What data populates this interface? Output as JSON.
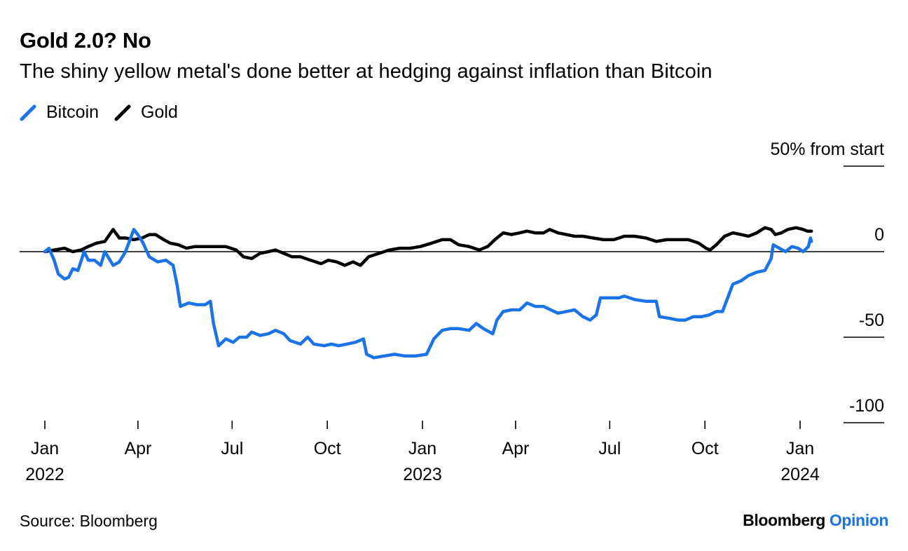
{
  "header": {
    "title": "Gold 2.0? No",
    "subtitle": "The shiny yellow metal's done better at hedging against inflation than Bitcoin"
  },
  "legend": [
    {
      "name": "Bitcoin",
      "color": "#1a73e8"
    },
    {
      "name": "Gold",
      "color": "#000000"
    }
  ],
  "footer": {
    "source": "Source: Bloomberg",
    "brand_main": "Bloomberg",
    "brand_accent": "Opinion"
  },
  "chart_data": {
    "type": "line",
    "ylabel": "50% from start",
    "ylim": [
      -100,
      50
    ],
    "y_ticks": [
      {
        "value": 50,
        "label": "50% from start"
      },
      {
        "value": 0,
        "label": "0"
      },
      {
        "value": -50,
        "label": "-50"
      },
      {
        "value": -100,
        "label": "-100"
      }
    ],
    "x_ticks": [
      {
        "date": "2022-01-01",
        "label": "Jan",
        "year": "2022"
      },
      {
        "date": "2022-04-01",
        "label": "Apr",
        "year": ""
      },
      {
        "date": "2022-07-01",
        "label": "Jul",
        "year": ""
      },
      {
        "date": "2022-10-01",
        "label": "Oct",
        "year": ""
      },
      {
        "date": "2023-01-01",
        "label": "Jan",
        "year": "2023"
      },
      {
        "date": "2023-04-01",
        "label": "Apr",
        "year": ""
      },
      {
        "date": "2023-07-01",
        "label": "Jul",
        "year": ""
      },
      {
        "date": "2023-10-01",
        "label": "Oct",
        "year": ""
      },
      {
        "date": "2024-01-01",
        "label": "Jan",
        "year": "2024"
      }
    ],
    "grid": "zero line only",
    "legend_position": "top-left",
    "series": [
      {
        "name": "Bitcoin",
        "color": "#1a73e8",
        "points": [
          [
            "2022-01-01",
            0
          ],
          [
            "2022-01-05",
            2
          ],
          [
            "2022-01-10",
            -5
          ],
          [
            "2022-01-14",
            -13
          ],
          [
            "2022-01-20",
            -16
          ],
          [
            "2022-01-24",
            -15
          ],
          [
            "2022-01-28",
            -10
          ],
          [
            "2022-02-02",
            -11
          ],
          [
            "2022-02-08",
            0
          ],
          [
            "2022-02-12",
            -5
          ],
          [
            "2022-02-18",
            -5
          ],
          [
            "2022-02-24",
            -8
          ],
          [
            "2022-02-28",
            0
          ],
          [
            "2022-03-03",
            -3
          ],
          [
            "2022-03-08",
            -8
          ],
          [
            "2022-03-14",
            -6
          ],
          [
            "2022-03-20",
            0
          ],
          [
            "2022-03-28",
            13
          ],
          [
            "2022-04-02",
            9
          ],
          [
            "2022-04-06",
            5
          ],
          [
            "2022-04-12",
            -3
          ],
          [
            "2022-04-20",
            -6
          ],
          [
            "2022-04-28",
            -5
          ],
          [
            "2022-05-05",
            -8
          ],
          [
            "2022-05-09",
            -20
          ],
          [
            "2022-05-12",
            -32
          ],
          [
            "2022-05-20",
            -30
          ],
          [
            "2022-05-28",
            -31
          ],
          [
            "2022-06-05",
            -31
          ],
          [
            "2022-06-10",
            -29
          ],
          [
            "2022-06-13",
            -42
          ],
          [
            "2022-06-18",
            -55
          ],
          [
            "2022-06-25",
            -51
          ],
          [
            "2022-07-02",
            -53
          ],
          [
            "2022-07-08",
            -50
          ],
          [
            "2022-07-15",
            -50
          ],
          [
            "2022-07-20",
            -47
          ],
          [
            "2022-07-28",
            -49
          ],
          [
            "2022-08-05",
            -48
          ],
          [
            "2022-08-12",
            -46
          ],
          [
            "2022-08-20",
            -48
          ],
          [
            "2022-08-26",
            -52
          ],
          [
            "2022-09-05",
            -54
          ],
          [
            "2022-09-12",
            -50
          ],
          [
            "2022-09-18",
            -54
          ],
          [
            "2022-09-28",
            -55
          ],
          [
            "2022-10-05",
            -54
          ],
          [
            "2022-10-12",
            -55
          ],
          [
            "2022-10-20",
            -54
          ],
          [
            "2022-10-28",
            -53
          ],
          [
            "2022-11-05",
            -51
          ],
          [
            "2022-11-08",
            -60
          ],
          [
            "2022-11-15",
            -62
          ],
          [
            "2022-11-25",
            -61
          ],
          [
            "2022-12-05",
            -60
          ],
          [
            "2022-12-15",
            -61
          ],
          [
            "2022-12-25",
            -61
          ],
          [
            "2023-01-05",
            -60
          ],
          [
            "2023-01-12",
            -51
          ],
          [
            "2023-01-20",
            -46
          ],
          [
            "2023-01-28",
            -45
          ],
          [
            "2023-02-05",
            -45
          ],
          [
            "2023-02-15",
            -46
          ],
          [
            "2023-02-22",
            -42
          ],
          [
            "2023-03-01",
            -45
          ],
          [
            "2023-03-10",
            -48
          ],
          [
            "2023-03-14",
            -40
          ],
          [
            "2023-03-20",
            -35
          ],
          [
            "2023-03-28",
            -34
          ],
          [
            "2023-04-05",
            -34
          ],
          [
            "2023-04-12",
            -30
          ],
          [
            "2023-04-20",
            -32
          ],
          [
            "2023-04-28",
            -32
          ],
          [
            "2023-05-05",
            -34
          ],
          [
            "2023-05-12",
            -36
          ],
          [
            "2023-05-20",
            -35
          ],
          [
            "2023-05-28",
            -34
          ],
          [
            "2023-06-05",
            -38
          ],
          [
            "2023-06-12",
            -40
          ],
          [
            "2023-06-18",
            -37
          ],
          [
            "2023-06-22",
            -27
          ],
          [
            "2023-06-30",
            -27
          ],
          [
            "2023-07-10",
            -27
          ],
          [
            "2023-07-15",
            -26
          ],
          [
            "2023-07-25",
            -28
          ],
          [
            "2023-08-05",
            -29
          ],
          [
            "2023-08-15",
            -29
          ],
          [
            "2023-08-18",
            -38
          ],
          [
            "2023-08-28",
            -39
          ],
          [
            "2023-09-05",
            -40
          ],
          [
            "2023-09-12",
            -40
          ],
          [
            "2023-09-20",
            -38
          ],
          [
            "2023-09-28",
            -38
          ],
          [
            "2023-10-05",
            -37
          ],
          [
            "2023-10-12",
            -35
          ],
          [
            "2023-10-18",
            -35
          ],
          [
            "2023-10-23",
            -27
          ],
          [
            "2023-10-28",
            -19
          ],
          [
            "2023-11-05",
            -17
          ],
          [
            "2023-11-12",
            -14
          ],
          [
            "2023-11-20",
            -12
          ],
          [
            "2023-11-28",
            -11
          ],
          [
            "2023-12-04",
            -4
          ],
          [
            "2023-12-06",
            4
          ],
          [
            "2023-12-12",
            2
          ],
          [
            "2023-12-18",
            0
          ],
          [
            "2023-12-24",
            3
          ],
          [
            "2023-12-30",
            2
          ],
          [
            "2024-01-04",
            0
          ],
          [
            "2024-01-09",
            3
          ],
          [
            "2024-01-11",
            8
          ],
          [
            "2024-01-12",
            6
          ]
        ]
      },
      {
        "name": "Gold",
        "color": "#000000",
        "points": [
          [
            "2022-01-01",
            0
          ],
          [
            "2022-01-10",
            1
          ],
          [
            "2022-01-20",
            2
          ],
          [
            "2022-01-28",
            0
          ],
          [
            "2022-02-05",
            1
          ],
          [
            "2022-02-12",
            3
          ],
          [
            "2022-02-20",
            5
          ],
          [
            "2022-02-28",
            6
          ],
          [
            "2022-03-08",
            13
          ],
          [
            "2022-03-14",
            8
          ],
          [
            "2022-03-20",
            8
          ],
          [
            "2022-03-28",
            7
          ],
          [
            "2022-04-05",
            8
          ],
          [
            "2022-04-12",
            10
          ],
          [
            "2022-04-18",
            10
          ],
          [
            "2022-04-26",
            7
          ],
          [
            "2022-05-02",
            5
          ],
          [
            "2022-05-10",
            4
          ],
          [
            "2022-05-18",
            2
          ],
          [
            "2022-05-26",
            3
          ],
          [
            "2022-06-05",
            3
          ],
          [
            "2022-06-15",
            3
          ],
          [
            "2022-06-25",
            3
          ],
          [
            "2022-07-05",
            1
          ],
          [
            "2022-07-12",
            -3
          ],
          [
            "2022-07-20",
            -4
          ],
          [
            "2022-07-28",
            -1
          ],
          [
            "2022-08-05",
            0
          ],
          [
            "2022-08-12",
            1
          ],
          [
            "2022-08-20",
            -1
          ],
          [
            "2022-08-28",
            -3
          ],
          [
            "2022-09-05",
            -3
          ],
          [
            "2022-09-15",
            -5
          ],
          [
            "2022-09-25",
            -7
          ],
          [
            "2022-10-02",
            -5
          ],
          [
            "2022-10-10",
            -6
          ],
          [
            "2022-10-18",
            -8
          ],
          [
            "2022-10-26",
            -6
          ],
          [
            "2022-11-02",
            -8
          ],
          [
            "2022-11-10",
            -3
          ],
          [
            "2022-11-20",
            -1
          ],
          [
            "2022-11-30",
            1
          ],
          [
            "2022-12-10",
            2
          ],
          [
            "2022-12-20",
            2
          ],
          [
            "2022-12-30",
            3
          ],
          [
            "2023-01-10",
            5
          ],
          [
            "2023-01-20",
            7
          ],
          [
            "2023-01-28",
            7
          ],
          [
            "2023-02-05",
            4
          ],
          [
            "2023-02-15",
            3
          ],
          [
            "2023-02-25",
            1
          ],
          [
            "2023-03-05",
            3
          ],
          [
            "2023-03-12",
            7
          ],
          [
            "2023-03-20",
            11
          ],
          [
            "2023-03-28",
            10
          ],
          [
            "2023-04-05",
            11
          ],
          [
            "2023-04-12",
            12
          ],
          [
            "2023-04-20",
            11
          ],
          [
            "2023-04-28",
            11
          ],
          [
            "2023-05-04",
            13
          ],
          [
            "2023-05-12",
            11
          ],
          [
            "2023-05-20",
            10
          ],
          [
            "2023-05-28",
            9
          ],
          [
            "2023-06-05",
            9
          ],
          [
            "2023-06-15",
            8
          ],
          [
            "2023-06-25",
            7
          ],
          [
            "2023-07-05",
            7
          ],
          [
            "2023-07-15",
            9
          ],
          [
            "2023-07-25",
            9
          ],
          [
            "2023-08-05",
            8
          ],
          [
            "2023-08-15",
            6
          ],
          [
            "2023-08-25",
            7
          ],
          [
            "2023-09-05",
            7
          ],
          [
            "2023-09-15",
            7
          ],
          [
            "2023-09-25",
            5
          ],
          [
            "2023-10-02",
            2
          ],
          [
            "2023-10-06",
            1
          ],
          [
            "2023-10-12",
            4
          ],
          [
            "2023-10-20",
            9
          ],
          [
            "2023-10-28",
            11
          ],
          [
            "2023-11-05",
            10
          ],
          [
            "2023-11-12",
            9
          ],
          [
            "2023-11-20",
            11
          ],
          [
            "2023-11-28",
            14
          ],
          [
            "2023-12-04",
            13
          ],
          [
            "2023-12-08",
            10
          ],
          [
            "2023-12-14",
            11
          ],
          [
            "2023-12-20",
            13
          ],
          [
            "2023-12-28",
            14
          ],
          [
            "2024-01-04",
            13
          ],
          [
            "2024-01-08",
            12
          ],
          [
            "2024-01-12",
            12
          ]
        ]
      }
    ]
  }
}
